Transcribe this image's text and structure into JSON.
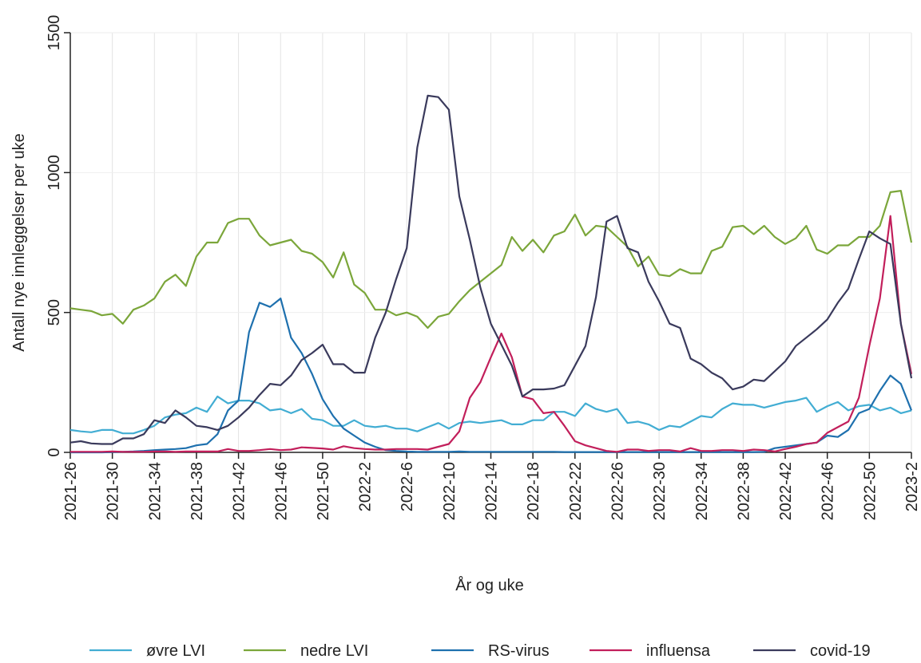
{
  "chart_data": {
    "type": "line",
    "x_label": "År og uke",
    "y_label": "Antall nye innleggelser per uke",
    "categories": [
      "2021-26",
      null,
      null,
      null,
      "2021-30",
      null,
      null,
      null,
      "2021-34",
      null,
      null,
      null,
      "2021-38",
      null,
      null,
      null,
      "2021-42",
      null,
      null,
      null,
      "2021-46",
      null,
      null,
      null,
      "2021-50",
      null,
      null,
      null,
      "2022-2",
      null,
      null,
      null,
      "2022-6",
      null,
      null,
      null,
      "2022-10",
      null,
      null,
      null,
      "2022-14",
      null,
      null,
      null,
      "2022-18",
      null,
      null,
      null,
      "2022-22",
      null,
      null,
      null,
      "2022-26",
      null,
      null,
      null,
      "2022-30",
      null,
      null,
      null,
      "2022-34",
      null,
      null,
      null,
      "2022-38",
      null,
      null,
      null,
      "2022-42",
      null,
      null,
      null,
      "2022-46",
      null,
      null,
      null,
      "2022-50",
      null,
      null,
      null,
      "2023-2"
    ],
    "ylim": [
      0,
      1500
    ],
    "yticks": [
      0,
      500,
      1000,
      1500
    ],
    "grid": true,
    "legend": "bottom",
    "series": [
      {
        "name": "øvre LVI",
        "color": "#42add3",
        "values": [
          80,
          75,
          72,
          80,
          80,
          68,
          68,
          80,
          95,
          125,
          135,
          140,
          160,
          145,
          200,
          175,
          185,
          185,
          175,
          150,
          155,
          140,
          155,
          120,
          115,
          95,
          95,
          115,
          95,
          90,
          95,
          85,
          85,
          75,
          90,
          105,
          85,
          105,
          110,
          105,
          110,
          115,
          100,
          100,
          115,
          115,
          145,
          145,
          130,
          175,
          155,
          145,
          155,
          105,
          110,
          100,
          80,
          95,
          90,
          110,
          130,
          125,
          155,
          175,
          170,
          170,
          160,
          170,
          180,
          185,
          195,
          145,
          165,
          180,
          150,
          165,
          170,
          150,
          160,
          140,
          150
        ]
      },
      {
        "name": "nedre LVI",
        "color": "#7ba63a",
        "values": [
          515,
          510,
          505,
          490,
          495,
          460,
          510,
          525,
          550,
          610,
          635,
          595,
          700,
          750,
          750,
          820,
          835,
          835,
          775,
          740,
          750,
          760,
          720,
          710,
          680,
          625,
          715,
          600,
          570,
          510,
          510,
          490,
          500,
          485,
          445,
          485,
          495,
          540,
          580,
          610,
          640,
          670,
          770,
          720,
          760,
          715,
          775,
          790,
          850,
          775,
          810,
          805,
          770,
          735,
          665,
          700,
          635,
          630,
          655,
          640,
          640,
          720,
          735,
          805,
          810,
          780,
          810,
          770,
          745,
          765,
          810,
          725,
          710,
          740,
          740,
          770,
          770,
          810,
          930,
          935,
          750
        ]
      },
      {
        "name": "RS-virus",
        "color": "#1e70ae",
        "values": [
          0,
          0,
          0,
          0,
          1,
          2,
          3,
          5,
          8,
          10,
          12,
          15,
          25,
          30,
          65,
          150,
          185,
          430,
          535,
          520,
          550,
          410,
          355,
          280,
          190,
          130,
          85,
          60,
          35,
          20,
          8,
          5,
          3,
          2,
          2,
          2,
          2,
          3,
          2,
          2,
          2,
          2,
          2,
          2,
          2,
          2,
          2,
          1,
          1,
          1,
          1,
          1,
          1,
          1,
          1,
          1,
          1,
          1,
          1,
          1,
          1,
          1,
          1,
          1,
          1,
          1,
          2,
          15,
          20,
          25,
          30,
          35,
          60,
          55,
          80,
          140,
          155,
          220,
          275,
          245,
          150
        ]
      },
      {
        "name": "influensa",
        "color": "#c21f5b",
        "values": [
          2,
          2,
          2,
          2,
          3,
          2,
          2,
          2,
          3,
          3,
          2,
          3,
          3,
          3,
          3,
          12,
          5,
          5,
          8,
          12,
          8,
          10,
          18,
          16,
          14,
          10,
          22,
          15,
          12,
          10,
          10,
          12,
          12,
          12,
          10,
          20,
          30,
          75,
          195,
          250,
          340,
          425,
          340,
          200,
          190,
          140,
          145,
          95,
          40,
          25,
          15,
          5,
          2,
          10,
          10,
          5,
          8,
          8,
          3,
          15,
          5,
          5,
          8,
          8,
          5,
          10,
          8,
          3,
          12,
          20,
          30,
          35,
          70,
          90,
          110,
          195,
          380,
          550,
          845,
          460,
          280
        ]
      },
      {
        "name": "covid-19",
        "color": "#3a3a5c",
        "values": [
          35,
          40,
          32,
          30,
          30,
          50,
          50,
          65,
          115,
          105,
          150,
          125,
          95,
          90,
          80,
          95,
          125,
          160,
          205,
          245,
          240,
          275,
          330,
          355,
          385,
          315,
          315,
          285,
          285,
          410,
          500,
          620,
          730,
          1090,
          1275,
          1270,
          1225,
          915,
          760,
          590,
          460,
          385,
          310,
          200,
          225,
          225,
          228,
          240,
          310,
          380,
          555,
          825,
          845,
          730,
          715,
          610,
          540,
          460,
          445,
          335,
          315,
          285,
          265,
          225,
          235,
          260,
          255,
          290,
          325,
          380,
          410,
          440,
          475,
          535,
          585,
          690,
          790,
          765,
          745,
          460,
          265
        ]
      }
    ]
  }
}
